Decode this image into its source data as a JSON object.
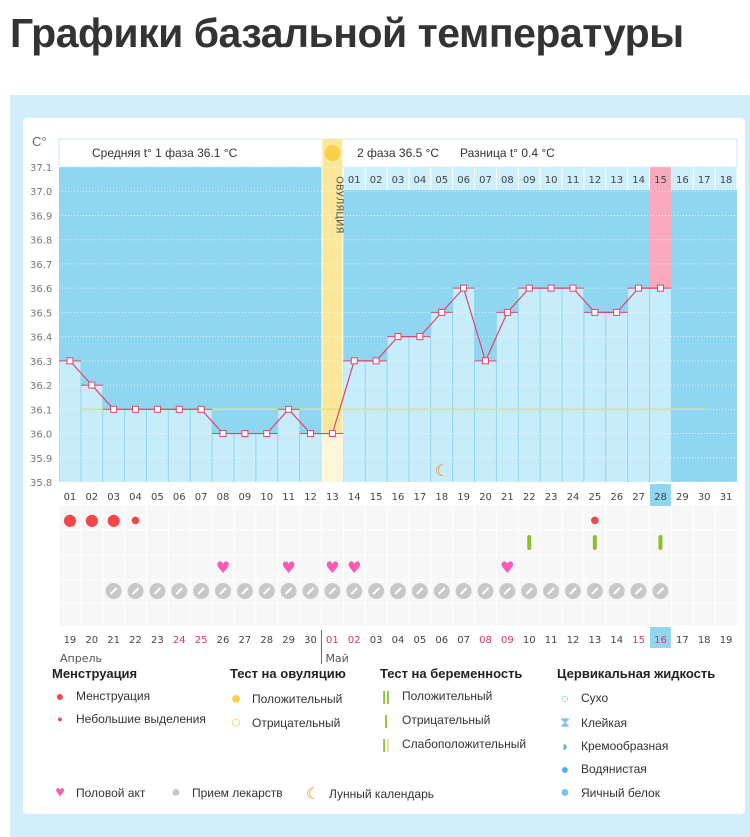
{
  "title": "Графики базальной температуры",
  "header": {
    "phase1": "Средняя t° 1 фаза 36.1 °С",
    "phase2": "2 фаза 36.5 °С",
    "difference": "Разница t° 0.4 °С",
    "ovulation_label": "ОВУЛЯЦИЯ",
    "y_unit": "С°"
  },
  "colors": {
    "phase_bg": "#8fd7f1",
    "bar": "#c7ecfa",
    "line": "#e0456e",
    "ovulation": "#fbe89a",
    "highlight_pink": "#f8a9bc",
    "coverline": "#d7e58a",
    "today": "#8fd7f1",
    "red_date": "#d6336c"
  },
  "chart_data": {
    "type": "line",
    "title": "",
    "xlabel": "",
    "ylabel": "С°",
    "ylim": [
      35.8,
      37.1
    ],
    "y_ticks": [
      "37.1",
      "37.0",
      "36.9",
      "36.8",
      "36.7",
      "36.6",
      "36.5",
      "36.4",
      "36.3",
      "36.2",
      "36.1",
      "36.0",
      "35.9",
      "35.8"
    ],
    "cycle_days": [
      "01",
      "02",
      "03",
      "04",
      "05",
      "06",
      "07",
      "08",
      "09",
      "10",
      "11",
      "12",
      "13",
      "14",
      "15",
      "16",
      "17",
      "18",
      "19",
      "20",
      "21",
      "22",
      "23",
      "24",
      "25",
      "26",
      "27",
      "28",
      "29",
      "30",
      "31"
    ],
    "phase2_days": [
      "01",
      "02",
      "03",
      "04",
      "05",
      "06",
      "07",
      "08",
      "09",
      "10",
      "11",
      "12",
      "13",
      "14",
      "15",
      "16",
      "17",
      "18"
    ],
    "temperatures": [
      36.3,
      36.2,
      36.1,
      36.1,
      36.1,
      36.1,
      36.1,
      36.0,
      36.0,
      36.0,
      36.1,
      36.0,
      36.0,
      36.3,
      36.3,
      36.4,
      36.4,
      36.5,
      36.6,
      36.3,
      36.5,
      36.6,
      36.6,
      36.6,
      36.5,
      36.5,
      36.6,
      36.6,
      null,
      null,
      null
    ],
    "coverline": 36.1,
    "ovulation_day": 13,
    "highlight_phase2_day": 15,
    "today_day": 28,
    "moon_day": 18,
    "menstruation": {
      "1": "heavy",
      "2": "heavy",
      "3": "heavy",
      "4": "light",
      "25": "light"
    },
    "pregnancy_test_negative": [
      22,
      25,
      28
    ],
    "intercourse": [
      8,
      11,
      13,
      14,
      21
    ],
    "medication": [
      3,
      4,
      5,
      6,
      7,
      8,
      9,
      10,
      11,
      12,
      13,
      14,
      15,
      16,
      17,
      18,
      19,
      20,
      21,
      22,
      23,
      24,
      25,
      26,
      27,
      28
    ],
    "dates": [
      "19",
      "20",
      "21",
      "22",
      "23",
      "24",
      "25",
      "26",
      "27",
      "28",
      "29",
      "30",
      "01",
      "02",
      "03",
      "04",
      "05",
      "06",
      "07",
      "08",
      "09",
      "10",
      "11",
      "12",
      "13",
      "14",
      "15",
      "16",
      "17",
      "18",
      "19"
    ],
    "red_dates": [
      5,
      6,
      12,
      13,
      19,
      20,
      26,
      27
    ],
    "months": [
      "Апрель",
      "Май"
    ]
  },
  "legend": {
    "menstruation": {
      "title": "Менструация",
      "items": [
        "Менструация",
        "Небольшие выделения"
      ]
    },
    "ovulation_test": {
      "title": "Тест на овуляцию",
      "items": [
        "Положительный",
        "Отрицательный"
      ]
    },
    "pregnancy_test": {
      "title": "Тест на беременность",
      "items": [
        "Положительный",
        "Отрицательный",
        "Слабоположительный"
      ]
    },
    "cervical": {
      "title": "Цервикальная жидкость",
      "items": [
        "Сухо",
        "Клейкая",
        "Кремообразная",
        "Водянистая",
        "Яичный белок"
      ]
    },
    "other": [
      "Половой акт",
      "Прием лекарств",
      "Лунный календарь"
    ]
  }
}
